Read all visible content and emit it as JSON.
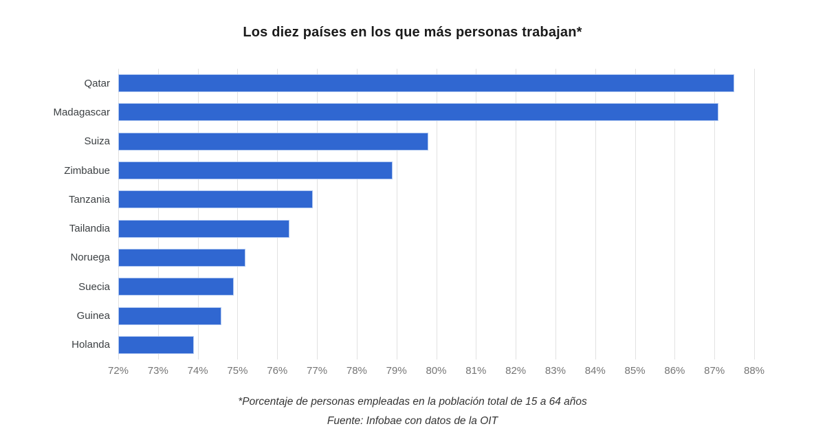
{
  "chart_data": {
    "type": "bar",
    "orientation": "horizontal",
    "title": "Los diez países en los que más personas trabajan*",
    "categories": [
      "Qatar",
      "Madagascar",
      "Suiza",
      "Zimbabue",
      "Tanzania",
      "Tailandia",
      "Noruega",
      "Suecia",
      "Guinea",
      "Holanda"
    ],
    "values": [
      87.5,
      87.1,
      79.8,
      78.9,
      76.9,
      76.3,
      75.2,
      74.9,
      74.6,
      73.9
    ],
    "value_suffix": "%",
    "xlabel": "",
    "ylabel": "",
    "x_axis": {
      "min": 72,
      "max": 88,
      "step": 1,
      "tick_labels": [
        "72%",
        "73%",
        "74%",
        "75%",
        "76%",
        "77%",
        "78%",
        "79%",
        "80%",
        "81%",
        "82%",
        "83%",
        "84%",
        "85%",
        "86%",
        "87%",
        "88%"
      ]
    },
    "grid": true,
    "legend": "none",
    "footnote": "*Porcentaje de personas empleadas en la población total de 15 a 64 años",
    "source": "Fuente: Infobae con datos de la OIT",
    "colors": {
      "bar": "#3067d1",
      "bar_border": "#aec6f0",
      "gridline": "#e1e1e1",
      "axis_label": "#757575",
      "category_label": "#3c4043",
      "title": "#1a1a1a",
      "footnote": "#333333",
      "background": "#ffffff"
    }
  }
}
